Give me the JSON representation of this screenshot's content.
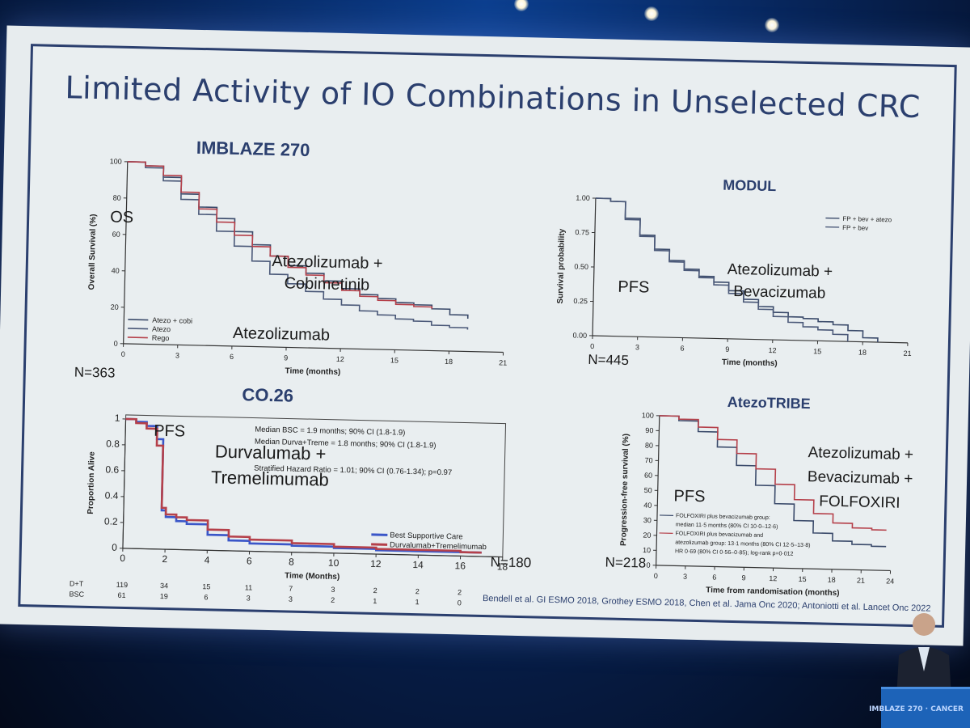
{
  "slide": {
    "title": "Limited Activity of IO Combinations in Unselected CRC",
    "citation": "Bendell et al. GI ESMO 2018, Grothey ESMO 2018, Chen et al. Jama Onc 2020; Antoniotti et al. Lancet Onc 2022"
  },
  "venue": {
    "lectern_text": "IMBLAZE 270 · CANCER"
  },
  "colors": {
    "blue": "#3a56c8",
    "red": "#b5404a",
    "dark": "#3a4a6a",
    "navy": "#2b3f6e"
  },
  "chart_data": [
    {
      "type": "line",
      "panel": "imblaze",
      "title": "IMBLAZE 270",
      "ylabel": "Overall Survival (%)",
      "xlabel": "Time (months)",
      "xlim": [
        0,
        21
      ],
      "ylim": [
        0,
        100
      ],
      "xticks": [
        0,
        3,
        6,
        9,
        12,
        15,
        18,
        21
      ],
      "yticks": [
        0,
        20,
        40,
        60,
        80,
        100
      ],
      "endpoint": "OS",
      "n": "N=363",
      "annotation_top": "Atezolizumab + Cobimetinib",
      "annotation_bottom": "Atezolizumab",
      "legend": [
        "Atezo + cobi",
        "Atezo",
        "Rego"
      ],
      "series": [
        {
          "name": "Atezo + cobi",
          "color": "#3a4a6a",
          "x": [
            0,
            1,
            2,
            3,
            4,
            5,
            6,
            7,
            8,
            9,
            10,
            11,
            12,
            13,
            14,
            15,
            16,
            17,
            18,
            19
          ],
          "y": [
            100,
            98,
            92,
            83,
            76,
            70,
            63,
            56,
            50,
            45,
            41,
            37,
            33,
            30,
            28,
            26,
            25,
            23,
            20,
            18
          ]
        },
        {
          "name": "Atezo",
          "color": "#4a5878",
          "x": [
            0,
            1,
            2,
            3,
            4,
            5,
            6,
            7,
            8,
            9,
            10,
            11,
            12,
            13,
            14,
            15,
            16,
            17,
            18,
            19
          ],
          "y": [
            100,
            97,
            90,
            80,
            72,
            63,
            55,
            47,
            40,
            35,
            31,
            27,
            24,
            21,
            19,
            17,
            16,
            14,
            13,
            12
          ]
        },
        {
          "name": "Rego",
          "color": "#b5404a",
          "x": [
            0,
            1,
            2,
            3,
            4,
            5,
            6,
            7,
            8,
            9,
            10,
            11,
            12,
            13,
            14,
            15,
            16,
            17
          ],
          "y": [
            100,
            98,
            93,
            84,
            75,
            68,
            61,
            55,
            50,
            44,
            40,
            36,
            32,
            29,
            27,
            25,
            24,
            23
          ]
        }
      ]
    },
    {
      "type": "line",
      "panel": "modul",
      "title": "MODUL",
      "ylabel": "Survival probability",
      "xlabel": "Time (months)",
      "xlim": [
        0,
        21
      ],
      "ylim": [
        0,
        1
      ],
      "xticks": [
        0,
        3,
        6,
        9,
        12,
        15,
        18,
        21
      ],
      "yticks": [
        "0.00",
        "0.25",
        "0.50",
        "0.75",
        "1.00"
      ],
      "endpoint": "PFS",
      "n": "N=445",
      "annotation": "Atezolizumab + Bevacizumab",
      "legend": [
        "FP + bev + atezo",
        "FP + bev"
      ],
      "series": [
        {
          "name": "FP + bev + atezo",
          "color": "#3a4a6a",
          "x": [
            0,
            1,
            2,
            3,
            4,
            5,
            6,
            7,
            8,
            9,
            10,
            11,
            12,
            13,
            14,
            15,
            16,
            17,
            18,
            19
          ],
          "y": [
            1,
            0.98,
            0.86,
            0.74,
            0.64,
            0.56,
            0.5,
            0.45,
            0.41,
            0.35,
            0.29,
            0.24,
            0.2,
            0.17,
            0.16,
            0.14,
            0.12,
            0.08,
            0.03,
            0.0
          ]
        },
        {
          "name": "FP + bev",
          "color": "#4a5878",
          "x": [
            0,
            1,
            2,
            3,
            4,
            5,
            6,
            7,
            8,
            9,
            10,
            11,
            12,
            13,
            14,
            15,
            16,
            17
          ],
          "y": [
            1,
            0.98,
            0.85,
            0.73,
            0.63,
            0.55,
            0.49,
            0.44,
            0.39,
            0.33,
            0.27,
            0.22,
            0.17,
            0.13,
            0.1,
            0.08,
            0.05,
            0.0
          ]
        }
      ]
    },
    {
      "type": "line",
      "panel": "co26",
      "title": "CO.26",
      "ylabel": "Proportion Alive",
      "xlabel": "Time (Months)",
      "xlim": [
        0,
        18
      ],
      "ylim": [
        0,
        1
      ],
      "xticks": [
        0,
        2,
        4,
        6,
        8,
        10,
        12,
        14,
        16,
        18
      ],
      "yticks": [
        "0",
        "0.2",
        "0.4",
        "0.6",
        "0.8",
        "1"
      ],
      "endpoint": "PFS",
      "n": "N=180",
      "annotation": "Durvalumab + Tremelimumab",
      "stats": [
        "Median BSC = 1.9 months; 90% CI (1.8-1.9)",
        "Median Durva+Treme = 1.8 months; 90% CI (1.8-1.9)",
        "Stratified Hazard Ratio = 1.01; 90% CI (0.76-1.34); p=0.97"
      ],
      "legend": [
        "Best Supportive Care",
        "Durvalumab+Tremelimumab"
      ],
      "series": [
        {
          "name": "Best Supportive Care",
          "color": "#3a56c8",
          "x": [
            0,
            0.5,
            1,
            1.5,
            1.8,
            2,
            2.5,
            3,
            4,
            5,
            6,
            8,
            10,
            12,
            14,
            16,
            17
          ],
          "y": [
            1,
            0.98,
            0.95,
            0.85,
            0.3,
            0.25,
            0.22,
            0.2,
            0.12,
            0.08,
            0.06,
            0.05,
            0.04,
            0.03,
            0.03,
            0.03,
            0.03
          ]
        },
        {
          "name": "Durvalumab+Tremelimumab",
          "color": "#b5404a",
          "x": [
            0,
            0.5,
            1,
            1.5,
            1.8,
            2,
            2.5,
            3,
            4,
            5,
            6,
            8,
            10,
            12,
            14,
            16,
            17
          ],
          "y": [
            1,
            0.97,
            0.93,
            0.8,
            0.32,
            0.27,
            0.25,
            0.23,
            0.16,
            0.11,
            0.09,
            0.07,
            0.05,
            0.04,
            0.04,
            0.03,
            0.03
          ]
        }
      ],
      "risk_table": {
        "labels": [
          "D+T",
          "BSC"
        ],
        "rows": [
          [
            "119",
            "34",
            "15",
            "11",
            "7",
            "3",
            "2",
            "2",
            "2"
          ],
          [
            "61",
            "19",
            "6",
            "3",
            "3",
            "2",
            "1",
            "1",
            "0"
          ]
        ]
      }
    },
    {
      "type": "line",
      "panel": "atezotribe",
      "title": "AtezoTRIBE",
      "ylabel": "Progression-free survival (%)",
      "xlabel": "Time from randomisation (months)",
      "xlim": [
        0,
        24
      ],
      "ylim": [
        0,
        100
      ],
      "xticks": [
        0,
        3,
        6,
        9,
        12,
        15,
        18,
        21,
        24
      ],
      "yticks": [
        0,
        10,
        20,
        30,
        40,
        50,
        60,
        70,
        80,
        90,
        100
      ],
      "endpoint": "PFS",
      "n": "N=218",
      "annotation": "Atezolizumab + Bevacizumab + FOLFOXIRI",
      "legend": [
        "FOLFOXIRI plus bevacizumab group:",
        "median 11·5 months (80% CI 10·0–12·6)",
        "FOLFOXIRI plus bevacizumab and",
        "atezolizumab group: 13·1 months (80% CI 12·5–13·8)",
        "HR 0·69 (80% CI 0·56–0·85); log-rank p=0·012"
      ],
      "series": [
        {
          "name": "FOLFOXIRI plus bevacizumab",
          "color": "#3a4a6a",
          "x": [
            0,
            2,
            4,
            6,
            8,
            10,
            12,
            14,
            16,
            18,
            20,
            22,
            23.5
          ],
          "y": [
            100,
            97,
            90,
            80,
            68,
            55,
            43,
            32,
            24,
            19,
            17,
            16,
            16
          ]
        },
        {
          "name": "FOLFOXIRI plus bevacizumab and atezolizumab",
          "color": "#b5404a",
          "x": [
            0,
            2,
            4,
            6,
            8,
            10,
            12,
            14,
            16,
            18,
            20,
            22,
            23.5
          ],
          "y": [
            100,
            98,
            93,
            85,
            76,
            66,
            56,
            46,
            37,
            31,
            28,
            27,
            27
          ]
        }
      ]
    }
  ]
}
